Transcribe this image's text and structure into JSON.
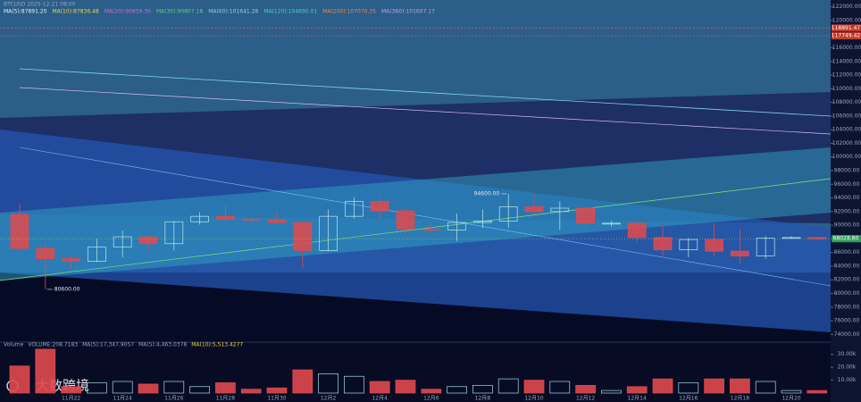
{
  "chart_data": [
    {
      "type": "candlestick",
      "header": "BTCUSD 2025-12-21 08:00",
      "ma_labels": [
        {
          "text": "MA(5):87891.20",
          "color": "#f0f0f0"
        },
        {
          "text": "MA(10):87836.48",
          "color": "#f3d34a"
        },
        {
          "text": "MA(20):90659.30",
          "color": "#d86ad8"
        },
        {
          "text": "MA(30):90807.18",
          "color": "#5fd08a"
        },
        {
          "text": "MA(60):101641.28",
          "color": "#9ec7f2"
        },
        {
          "text": "MA(120):104690.01",
          "color": "#4fd0d0"
        },
        {
          "text": "MA(200):107070.35",
          "color": "#f08a4b"
        },
        {
          "text": "MA(360):101607.17",
          "color": "#c9a0f0"
        }
      ],
      "categories": [
        null,
        null,
        "11月22",
        null,
        "11月24",
        null,
        "11月26",
        null,
        "11月28",
        null,
        "11月30",
        null,
        "12月2",
        null,
        "12月4",
        null,
        "12月6",
        null,
        "12月8",
        null,
        "12月10",
        null,
        "12月12",
        null,
        "12月14",
        null,
        "12月16",
        null,
        "12月18",
        null,
        "12月20",
        null
      ],
      "open": [
        91600,
        86600,
        85100,
        84700,
        86800,
        88300,
        87300,
        90500,
        91300,
        90900,
        90800,
        90400,
        86300,
        91300,
        93500,
        92100,
        89400,
        89300,
        90400,
        90600,
        92700,
        92000,
        92500,
        90300,
        90300,
        88200,
        86400,
        87900,
        86200,
        85500,
        88100,
        88200
      ],
      "high": [
        93200,
        87500,
        85600,
        88000,
        89200,
        88500,
        90600,
        91900,
        93100,
        91200,
        92000,
        90400,
        92300,
        94100,
        94000,
        92700,
        90300,
        91700,
        92300,
        94600,
        94500,
        93500,
        92700,
        90600,
        90400,
        90000,
        88100,
        90300,
        89400,
        88400,
        88400,
        88300
      ],
      "low": [
        86100,
        80600,
        83500,
        84600,
        85300,
        86100,
        86300,
        90100,
        90200,
        90200,
        90300,
        83800,
        86200,
        91000,
        91000,
        88100,
        88900,
        87700,
        89600,
        89600,
        91600,
        89300,
        89600,
        89800,
        87600,
        85300,
        85300,
        85500,
        84400,
        85100,
        88000,
        87900
      ],
      "close": [
        86600,
        85100,
        84700,
        86800,
        88300,
        87300,
        90500,
        91300,
        90900,
        90800,
        90400,
        86300,
        91300,
        93500,
        92100,
        89400,
        89300,
        90400,
        90600,
        92700,
        92000,
        92500,
        90300,
        90300,
        88200,
        86400,
        87900,
        86200,
        85500,
        88100,
        88200,
        88028.8
      ],
      "up_color": "#a9dbe6",
      "down_color": "#e0494e",
      "ylim": [
        73000,
        123000
      ],
      "yticks": [
        {
          "value": 74000,
          "label": "74000.00"
        },
        {
          "value": 76000,
          "label": "76000.00"
        },
        {
          "value": 78000,
          "label": "78000.00"
        },
        {
          "value": 80000,
          "label": "80000.00"
        },
        {
          "value": 82000,
          "label": "82000.00"
        },
        {
          "value": 84000,
          "label": "84000.00"
        },
        {
          "value": 86000,
          "label": "86000.00"
        },
        {
          "value": 88000,
          "label": "88000.00"
        },
        {
          "value": 90000,
          "label": "90000.00"
        },
        {
          "value": 92000,
          "label": "92000.00"
        },
        {
          "value": 94000,
          "label": "94000.00"
        },
        {
          "value": 96000,
          "label": "96000.00"
        },
        {
          "value": 98000,
          "label": "98000.00"
        },
        {
          "value": 100000,
          "label": "100000.00"
        },
        {
          "value": 102000,
          "label": "102000.00"
        },
        {
          "value": 104000,
          "label": "104000.00"
        },
        {
          "value": 106000,
          "label": "106000.00"
        },
        {
          "value": 108000,
          "label": "108000.00"
        },
        {
          "value": 110000,
          "label": "110000.00"
        },
        {
          "value": 112000,
          "label": "112000.00"
        },
        {
          "value": 114000,
          "label": "114000.00"
        },
        {
          "value": 116000,
          "label": "116000.00"
        },
        {
          "value": 120000,
          "label": "120000.00"
        },
        {
          "value": 122000,
          "label": "122000.00"
        }
      ],
      "price_lines": [
        118891.47,
        117749.42
      ],
      "last_price": {
        "value": 88028.8,
        "label": "88028.80"
      },
      "high_mark": {
        "value": 94600,
        "label": "94600.00"
      },
      "low_mark": {
        "value": 80600,
        "label": "80600.00"
      }
    },
    {
      "type": "bar",
      "header": [
        "Volume",
        "VOLUME:208.7183",
        "MA(5):17,347.9057",
        "MA(5):4,463.0378",
        "MA(10):5,513.4277"
      ],
      "values": [
        21000,
        34000,
        5000,
        8000,
        9000,
        7000,
        9000,
        5000,
        8000,
        3000,
        4000,
        18000,
        15000,
        13000,
        9000,
        10000,
        3000,
        5000,
        6000,
        11000,
        10000,
        9000,
        6000,
        2000,
        5000,
        11000,
        8000,
        11000,
        11000,
        9000,
        2000,
        2000
      ],
      "ylim": [
        0,
        36000
      ],
      "yticks": [
        {
          "value": 10000,
          "label": "10.00k"
        },
        {
          "value": 20000,
          "label": "20.00k"
        },
        {
          "value": 30000,
          "label": "30.00k"
        }
      ],
      "logo": "大数跨境"
    }
  ]
}
